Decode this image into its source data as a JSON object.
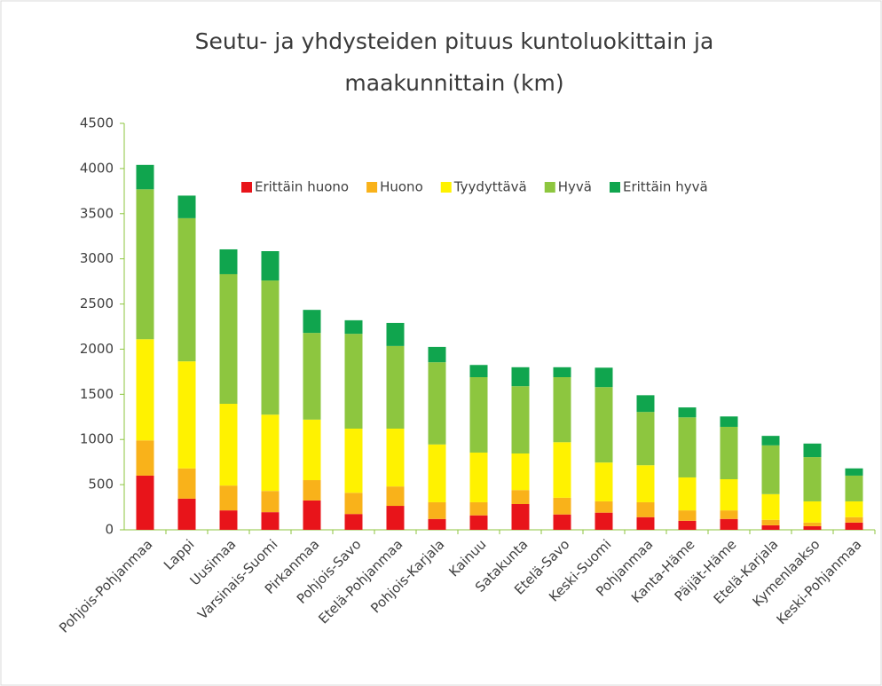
{
  "chart_data": {
    "type": "stacked_bar",
    "title": [
      "Seutu- ja yhdysteiden pituus kuntoluokittain ja",
      "maakunnittain (km)"
    ],
    "categories": [
      "Pohjois-Pohjanmaa",
      "Lappi",
      "Uusimaa",
      "Varsinais-Suomi",
      "Pirkanmaa",
      "Pohjois-Savo",
      "Etelä-Pohjanmaa",
      "Pohjois-Karjala",
      "Kainuu",
      "Satakunta",
      "Etelä-Savo",
      "Keski-Suomi",
      "Pohjanmaa",
      "Kanta-Häme",
      "Päijät-Häme",
      "Etelä-Karjala",
      "Kymenlaakso",
      "Keski-Pohjanmaa"
    ],
    "series": [
      {
        "name": "Erittäin huono",
        "color": "#e8141a",
        "values": [
          600,
          345,
          215,
          195,
          325,
          175,
          265,
          120,
          160,
          285,
          170,
          190,
          140,
          100,
          120,
          50,
          40,
          80
        ]
      },
      {
        "name": "Huono",
        "color": "#f9b21a",
        "values": [
          390,
          335,
          275,
          235,
          225,
          235,
          215,
          185,
          145,
          155,
          185,
          125,
          165,
          115,
          95,
          60,
          40,
          60
        ]
      },
      {
        "name": "Tyydyttävä",
        "color": "#fff200",
        "values": [
          1120,
          1185,
          905,
          845,
          670,
          710,
          640,
          640,
          550,
          405,
          615,
          430,
          410,
          365,
          345,
          285,
          235,
          175
        ]
      },
      {
        "name": "Hyvä",
        "color": "#8dc63f",
        "values": [
          1660,
          1585,
          1435,
          1485,
          960,
          1050,
          915,
          910,
          835,
          745,
          720,
          835,
          590,
          665,
          580,
          540,
          490,
          285
        ]
      },
      {
        "name": "Erittäin hyvä",
        "color": "#10a54e",
        "values": [
          270,
          250,
          275,
          325,
          255,
          150,
          255,
          170,
          135,
          210,
          110,
          215,
          185,
          110,
          115,
          105,
          150,
          80
        ]
      }
    ],
    "ylim": [
      0,
      4500
    ],
    "yticks": [
      0,
      500,
      1000,
      1500,
      2000,
      2500,
      3000,
      3500,
      4000,
      4500
    ],
    "legend": "top"
  }
}
